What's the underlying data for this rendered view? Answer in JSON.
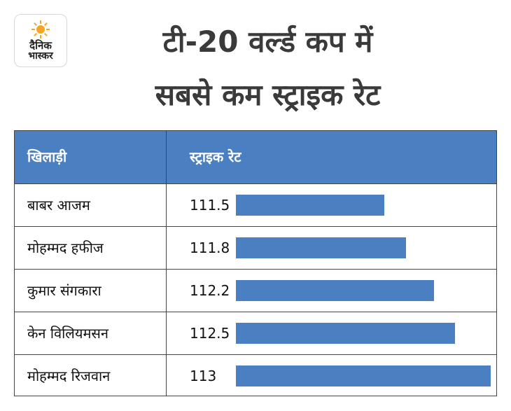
{
  "logo": {
    "line1": "दैनिक",
    "line2": "भास्कर"
  },
  "title": {
    "line1": "टी-20 वर्ल्ड कप में",
    "line2": "सबसे कम स्ट्राइक रेट"
  },
  "chart_data": {
    "type": "bar",
    "orientation": "horizontal",
    "title": "टी-20 वर्ल्ड कप में सबसे कम स्ट्राइक रेट",
    "columns": [
      "खिलाड़ी",
      "स्ट्राइक रेट"
    ],
    "categories": [
      "बाबर आजम",
      "मोहम्मद हफीज",
      "कुमार संगकारा",
      "केन विलियमसन",
      "मोहम्मद रिजवान"
    ],
    "values": [
      111.5,
      111.8,
      112.2,
      112.5,
      113
    ],
    "value_labels": [
      "111.5",
      "111.8",
      "112.2",
      "112.5",
      "113"
    ],
    "xlim": [
      109.4,
      113
    ],
    "bar_color": "#4a7fc1"
  }
}
